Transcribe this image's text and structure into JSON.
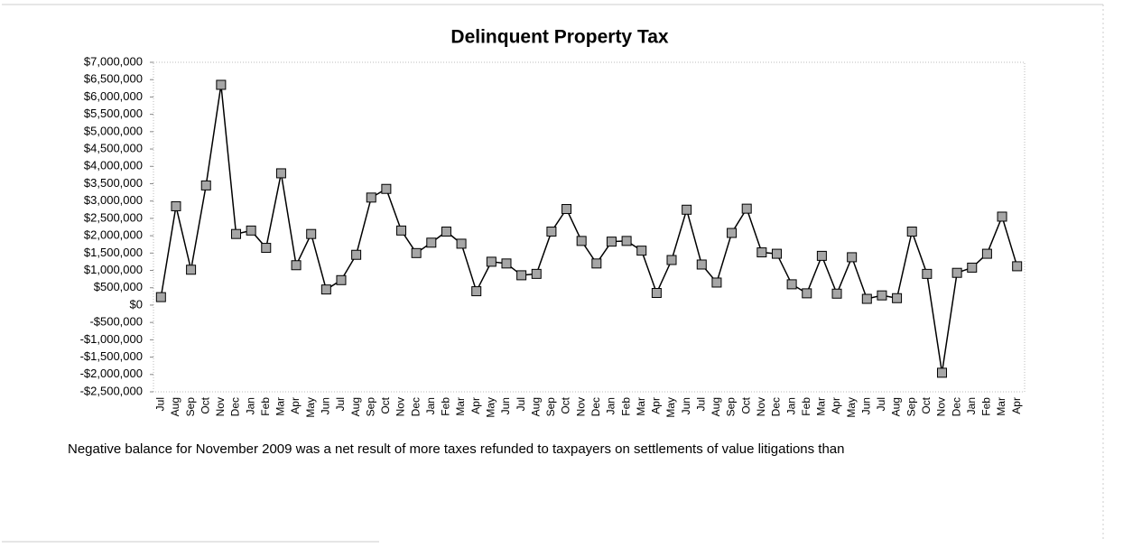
{
  "chart_data": {
    "type": "line",
    "title": "Delinquent Property Tax",
    "categories": [
      "Jul",
      "Aug",
      "Sep",
      "Oct",
      "Nov",
      "Dec",
      "Jan",
      "Feb",
      "Mar",
      "Apr",
      "May",
      "Jun",
      "Jul",
      "Aug",
      "Sep",
      "Oct",
      "Nov",
      "Dec",
      "Jan",
      "Feb",
      "Mar",
      "Apr",
      "May",
      "Jun",
      "Jul",
      "Aug",
      "Sep",
      "Oct",
      "Nov",
      "Dec",
      "Jan",
      "Feb",
      "Mar",
      "Apr",
      "May",
      "Jun",
      "Jul",
      "Aug",
      "Sep",
      "Oct",
      "Nov",
      "Dec",
      "Jan",
      "Feb",
      "Mar",
      "Apr",
      "May",
      "Jun",
      "Jul",
      "Aug",
      "Sep",
      "Oct",
      "Nov",
      "Dec",
      "Jan",
      "Feb",
      "Mar",
      "Apr"
    ],
    "series": [
      {
        "name": "Delinquent Property Tax",
        "color": "#000000",
        "marker_color": "#a6a6a6",
        "values": [
          230000,
          2850000,
          1020000,
          3450000,
          6350000,
          2050000,
          2150000,
          1650000,
          3800000,
          1150000,
          2050000,
          450000,
          720000,
          1450000,
          3100000,
          3350000,
          2150000,
          1500000,
          1800000,
          2120000,
          1770000,
          400000,
          1250000,
          1200000,
          860000,
          900000,
          2120000,
          2770000,
          1850000,
          1200000,
          1830000,
          1850000,
          1570000,
          350000,
          1300000,
          2750000,
          1170000,
          650000,
          2080000,
          2780000,
          1520000,
          1480000,
          600000,
          340000,
          1420000,
          330000,
          1380000,
          180000,
          280000,
          200000,
          2120000,
          900000,
          -1950000,
          930000,
          1080000,
          1480000,
          2550000,
          1120000
        ]
      }
    ],
    "ylim": [
      -2500000,
      7000000
    ],
    "yticks": [
      {
        "value": 7000000,
        "label": "$7,000,000"
      },
      {
        "value": 6500000,
        "label": "$6,500,000"
      },
      {
        "value": 6000000,
        "label": "$6,000,000"
      },
      {
        "value": 5500000,
        "label": "$5,500,000"
      },
      {
        "value": 5000000,
        "label": "$5,000,000"
      },
      {
        "value": 4500000,
        "label": "$4,500,000"
      },
      {
        "value": 4000000,
        "label": "$4,000,000"
      },
      {
        "value": 3500000,
        "label": "$3,500,000"
      },
      {
        "value": 3000000,
        "label": "$3,000,000"
      },
      {
        "value": 2500000,
        "label": "$2,500,000"
      },
      {
        "value": 2000000,
        "label": "$2,000,000"
      },
      {
        "value": 1500000,
        "label": "$1,500,000"
      },
      {
        "value": 1000000,
        "label": "$1,000,000"
      },
      {
        "value": 500000,
        "label": "$500,000"
      },
      {
        "value": 0,
        "label": "$0"
      },
      {
        "value": -500000,
        "label": "-$500,000"
      },
      {
        "value": -1000000,
        "label": "-$1,000,000"
      },
      {
        "value": -1500000,
        "label": "-$1,500,000"
      },
      {
        "value": -2000000,
        "label": "-$2,000,000"
      },
      {
        "value": -2500000,
        "label": "-$2,500,000"
      }
    ],
    "grid": false,
    "annotation": "Negative balance for November 2009 was a net result of more taxes refunded to taxpayers on settlements of value litigations than"
  }
}
